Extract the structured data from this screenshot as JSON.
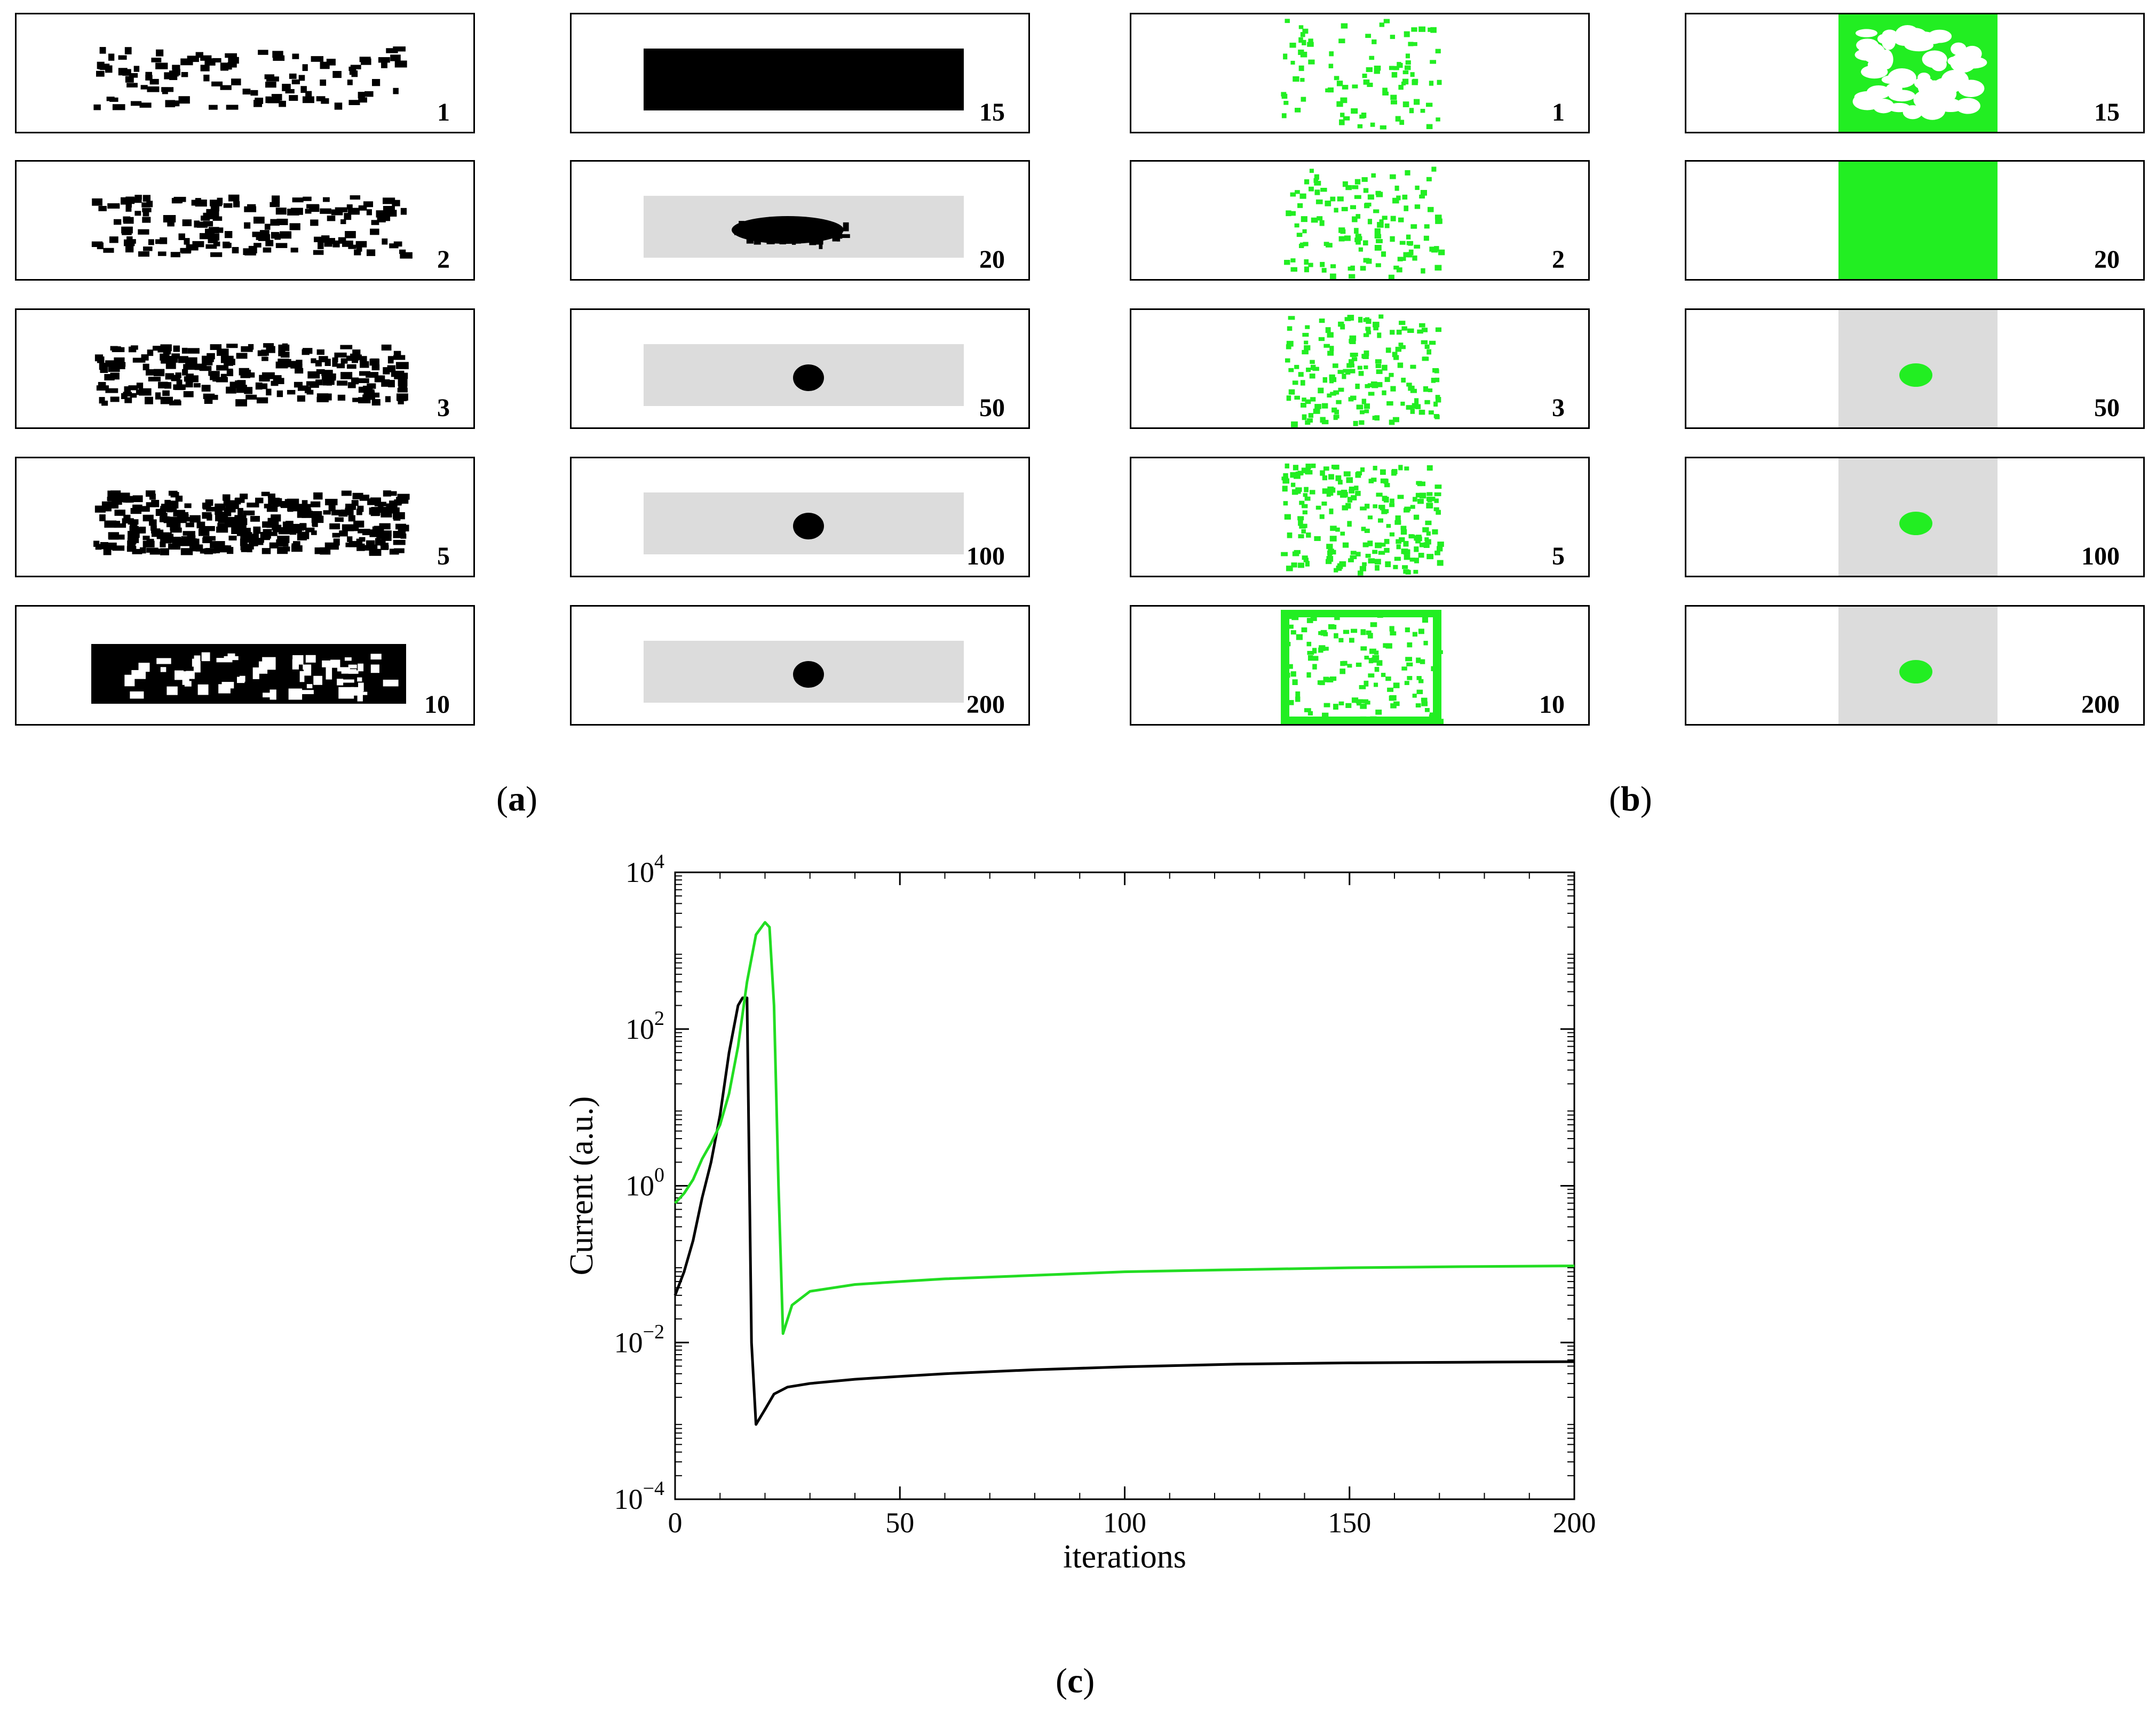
{
  "figure": {
    "panel_a": {
      "label_open": "(",
      "label_letter": "a",
      "label_close": ")",
      "column_1": {
        "style": "black-noise",
        "frames": [
          "1",
          "2",
          "3",
          "5",
          "10"
        ]
      },
      "column_2": {
        "style": "black-blob",
        "frames": [
          "15",
          "20",
          "50",
          "100",
          "200"
        ]
      }
    },
    "panel_b": {
      "label_open": "(",
      "label_letter": "b",
      "label_close": ")",
      "column_1": {
        "style": "green-noise",
        "frames": [
          "1",
          "2",
          "3",
          "5",
          "10"
        ]
      },
      "column_2": {
        "style": "green-blob",
        "frames": [
          "15",
          "20",
          "50",
          "100",
          "200"
        ]
      }
    },
    "panel_c": {
      "label_open": "(",
      "label_letter": "c",
      "label_close": ")"
    }
  },
  "colors": {
    "black_series": "#000000",
    "green_series": "#22dd22",
    "green_fill": "#22ee22",
    "gray_background": "#dcdcdc"
  },
  "chart_data": {
    "type": "line",
    "title": "",
    "xlabel": "iterations",
    "ylabel": "Current (a.u.)",
    "xlim": [
      0,
      200
    ],
    "ylim": [
      0.0001,
      10000
    ],
    "yscale": "log",
    "grid": false,
    "x_ticks": [
      0,
      50,
      100,
      150,
      200
    ],
    "y_ticks": [
      {
        "value": 0.0001,
        "base": "10",
        "exp": "−4"
      },
      {
        "value": 0.01,
        "base": "10",
        "exp": "−2"
      },
      {
        "value": 1,
        "base": "10",
        "exp": "0"
      },
      {
        "value": 100,
        "base": "10",
        "exp": "2"
      },
      {
        "value": 10000,
        "base": "10",
        "exp": "4"
      }
    ],
    "series": [
      {
        "name": "black",
        "color": "#000000",
        "x": [
          0,
          2,
          4,
          6,
          8,
          10,
          12,
          14,
          15,
          16,
          17,
          18,
          20,
          22,
          25,
          30,
          40,
          50,
          60,
          80,
          100,
          125,
          150,
          175,
          200
        ],
        "y": [
          0.04,
          0.08,
          0.2,
          0.7,
          2,
          8,
          50,
          200,
          250,
          250,
          0.01,
          0.0009,
          0.0014,
          0.0022,
          0.0027,
          0.003,
          0.0034,
          0.0037,
          0.004,
          0.0045,
          0.0049,
          0.0053,
          0.0055,
          0.0056,
          0.0057
        ]
      },
      {
        "name": "green",
        "color": "#22dd22",
        "x": [
          0,
          2,
          4,
          6,
          8,
          10,
          12,
          14,
          16,
          18,
          20,
          21,
          22,
          23,
          24,
          26,
          30,
          40,
          50,
          60,
          80,
          100,
          125,
          150,
          175,
          200
        ],
        "y": [
          0.6,
          0.8,
          1.2,
          2.2,
          3.5,
          6,
          15,
          60,
          400,
          1600,
          2300,
          2000,
          200,
          1,
          0.013,
          0.03,
          0.045,
          0.055,
          0.06,
          0.065,
          0.072,
          0.08,
          0.085,
          0.09,
          0.093,
          0.095
        ]
      }
    ]
  }
}
